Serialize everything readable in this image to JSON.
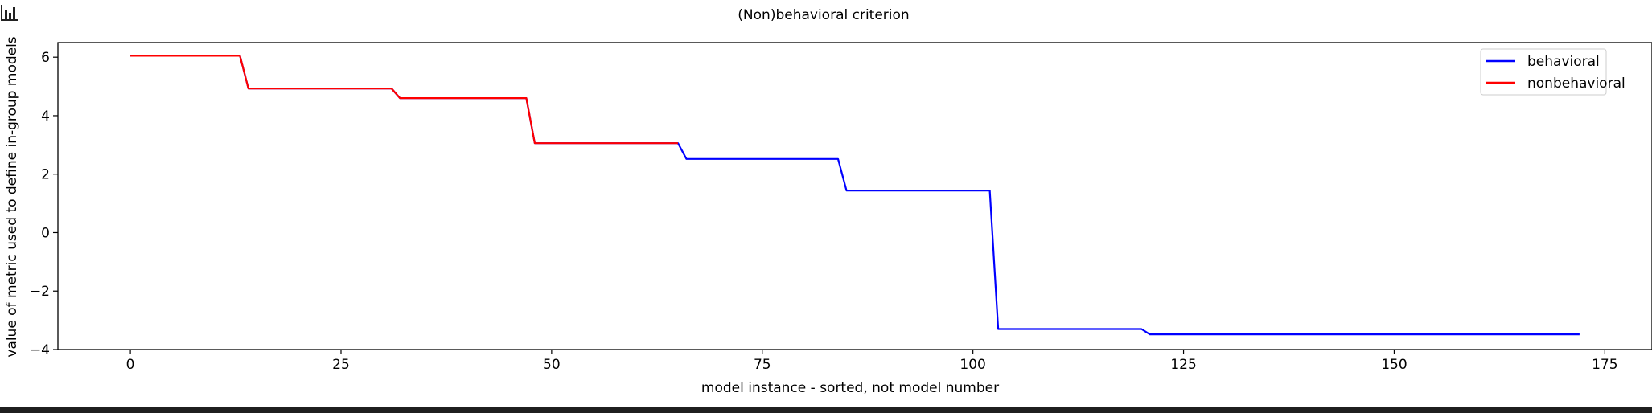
{
  "toolbar": {
    "icon": "bar-chart-icon"
  },
  "chart_data": {
    "type": "line",
    "title": "(Non)behavioral criterion",
    "xlabel": "model instance - sorted, not model number",
    "ylabel": "value of metric used to define in-group models",
    "xlim": [
      -8.6,
      180.6
    ],
    "ylim": [
      -4.0,
      6.5
    ],
    "xticks": [
      0,
      25,
      50,
      75,
      100,
      125,
      150,
      175
    ],
    "xtick_labels": [
      "0",
      "25",
      "50",
      "75",
      "100",
      "125",
      "150",
      "175"
    ],
    "yticks": [
      -4,
      -2,
      0,
      2,
      4,
      6
    ],
    "ytick_labels": [
      "−4",
      "−2",
      "0",
      "2",
      "4",
      "6"
    ],
    "grid": false,
    "legend_position": "top-right",
    "series": [
      {
        "name": "behavioral",
        "color": "#0000ff",
        "x": [
          0,
          13,
          14,
          31,
          32,
          47,
          48,
          65,
          66,
          84,
          85,
          102,
          103,
          120,
          121,
          172
        ],
        "y": [
          6.05,
          6.05,
          4.93,
          4.93,
          4.6,
          4.6,
          3.06,
          3.06,
          2.52,
          2.52,
          1.44,
          1.44,
          -3.3,
          -3.3,
          -3.48,
          -3.48
        ]
      },
      {
        "name": "nonbehavioral",
        "color": "#ff0000",
        "x": [
          0,
          13,
          14,
          31,
          32,
          47,
          48,
          65
        ],
        "y": [
          6.05,
          6.05,
          4.93,
          4.93,
          4.6,
          4.6,
          3.06,
          3.06
        ]
      }
    ]
  }
}
